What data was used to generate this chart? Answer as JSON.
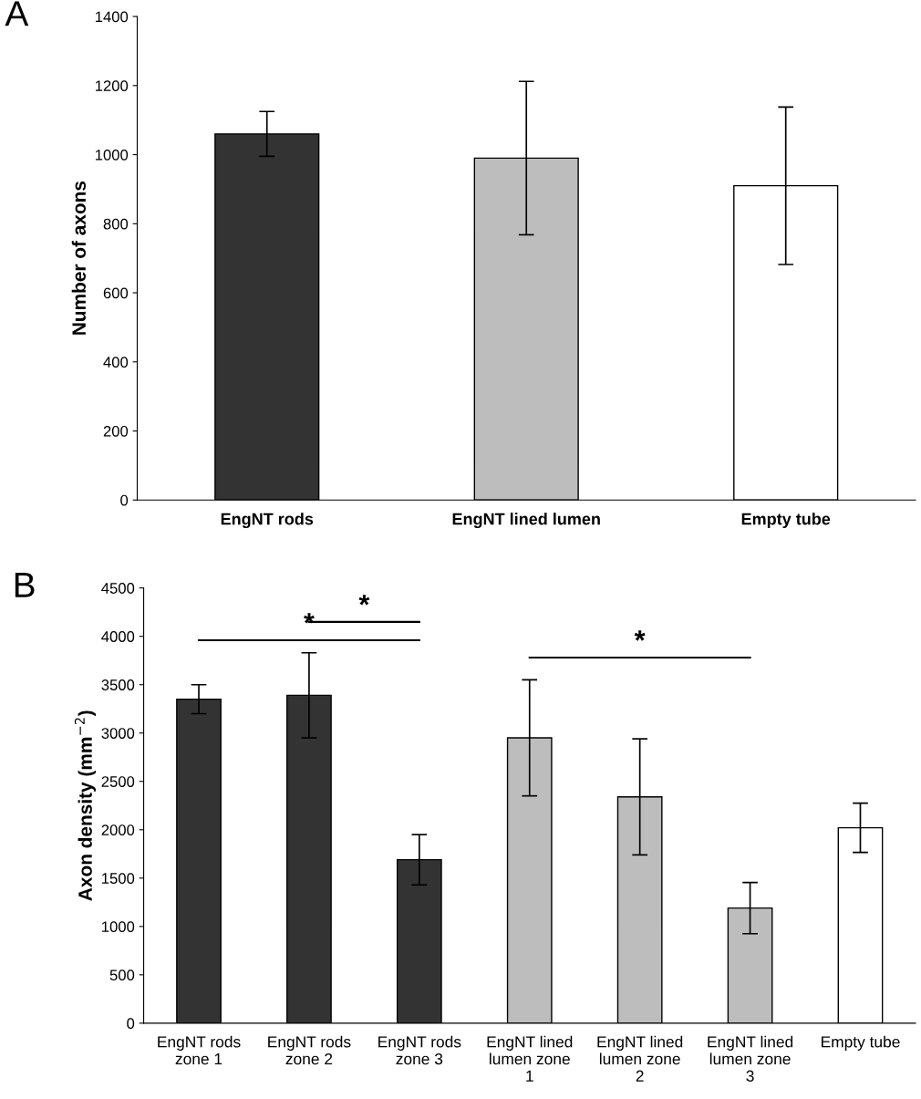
{
  "chart_data": [
    {
      "type": "bar",
      "ylabel": "Number of axons",
      "annotations": [
        "A"
      ],
      "categories": [
        "EngNT rods",
        "EngNT lined lumen",
        "Empty tube"
      ],
      "values": [
        1060,
        990,
        910
      ],
      "errors": [
        65,
        222,
        228
      ],
      "colors": [
        "#333333",
        "#bdbdbd",
        "#ffffff"
      ],
      "ylim": [
        0,
        1400
      ],
      "yticks": [
        0,
        200,
        400,
        600,
        800,
        1000,
        1200,
        1400
      ],
      "grid": false,
      "legend": false
    },
    {
      "type": "bar",
      "ylabel": "Axon density (mm$^{−2}$)",
      "annotations": [
        "B",
        "*",
        "*",
        "*"
      ],
      "categories": [
        "EngNT rods\nzone 1",
        "EngNT rods\nzone 2",
        "EngNT rods\nzone 3",
        "EngNT lined\nlumen zone\n1",
        "EngNT lined\nlumen zone\n2",
        "EngNT lined\nlumen zone\n3",
        "Empty tube"
      ],
      "values": [
        3350,
        3390,
        1690,
        2950,
        2340,
        1190,
        2020
      ],
      "errors": [
        150,
        440,
        260,
        600,
        600,
        265,
        255
      ],
      "colors": [
        "#333333",
        "#333333",
        "#333333",
        "#bdbdbd",
        "#bdbdbd",
        "#bdbdbd",
        "#ffffff"
      ],
      "ylim": [
        0,
        4500
      ],
      "yticks": [
        0,
        500,
        1000,
        1500,
        2000,
        2500,
        3000,
        3500,
        4000,
        4500
      ],
      "grid": false,
      "legend": false
    }
  ]
}
